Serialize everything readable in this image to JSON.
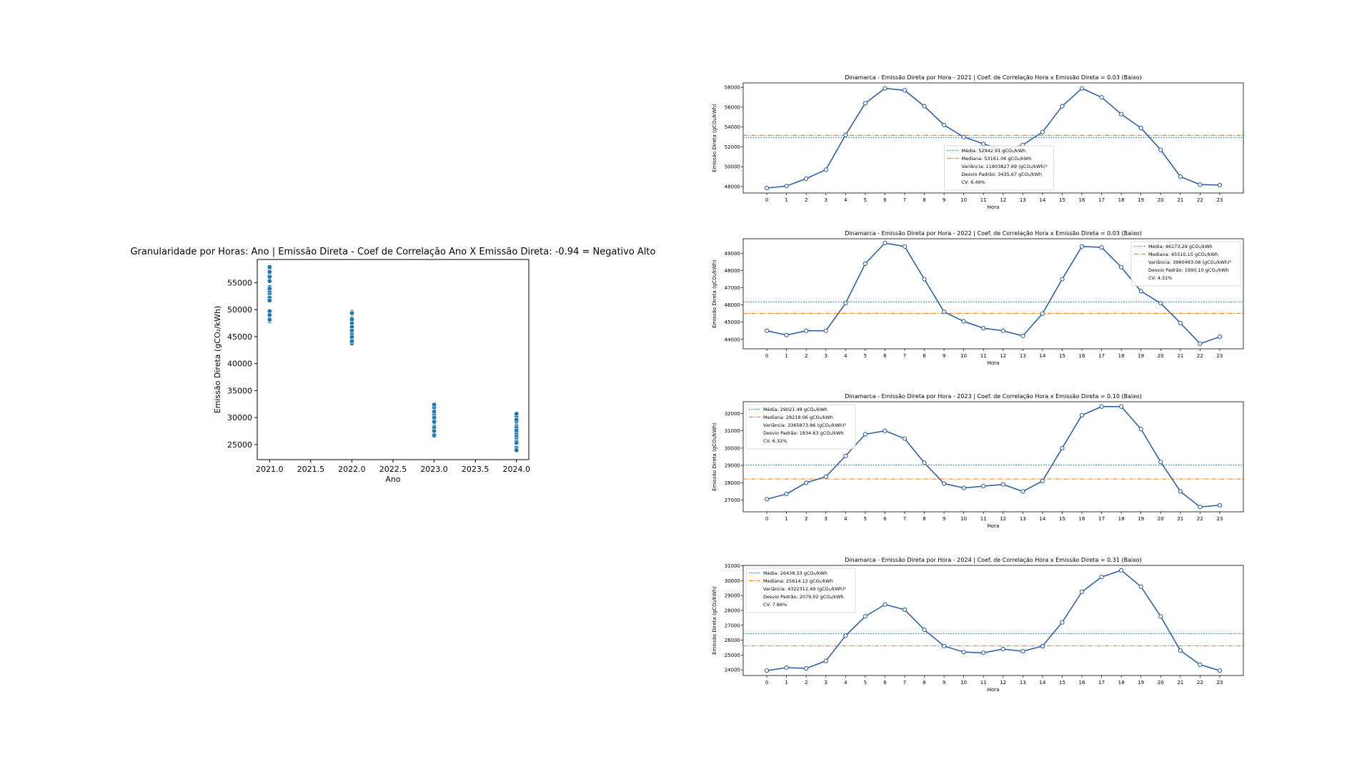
{
  "chart_data": [
    {
      "type": "scatter",
      "title": "Granularidade por Horas: Ano | Emissão Direta - Coef de Correlação Ano X Emissão Direta: -0.94 = Negativo Alto",
      "xlabel": "Ano",
      "ylabel": "Emissão Direta (gCO₂/kWh)",
      "xlim": [
        2020.85,
        2024.15
      ],
      "ylim": [
        22200,
        59300
      ],
      "xticks": [
        2021.0,
        2021.5,
        2022.0,
        2022.5,
        2023.0,
        2023.5,
        2024.0
      ],
      "xtick_labels": [
        "2021.0",
        "2021.5",
        "2022.0",
        "2022.5",
        "2023.0",
        "2023.5",
        "2024.0"
      ],
      "yticks": [
        25000,
        30000,
        35000,
        40000,
        45000,
        50000,
        55000
      ],
      "ytick_labels": [
        "25000",
        "30000",
        "35000",
        "40000",
        "45000",
        "50000",
        "55000"
      ],
      "color": "#1f77b4",
      "series": [
        {
          "x": 2021,
          "values": [
            47850,
            48050,
            48800,
            49700,
            53200,
            56400,
            57900,
            57700,
            56100,
            54200,
            53000,
            52300,
            51700,
            52200,
            53500,
            56100,
            57900,
            57000,
            55300,
            53900,
            51700,
            49000,
            48200,
            48150
          ]
        },
        {
          "x": 2022,
          "values": [
            44500,
            44250,
            44500,
            44500,
            46100,
            48400,
            49600,
            49400,
            47500,
            45600,
            45050,
            44650,
            44500,
            44200,
            45500,
            47500,
            49400,
            49350,
            48200,
            46800,
            46100,
            44950,
            43750,
            44150
          ]
        },
        {
          "x": 2023,
          "values": [
            27050,
            27350,
            28000,
            28350,
            29550,
            30800,
            31000,
            30550,
            29150,
            27950,
            27700,
            27800,
            27900,
            27500,
            28100,
            30000,
            31900,
            32400,
            32400,
            31100,
            29200,
            27500,
            26600,
            26700
          ]
        },
        {
          "x": 2024,
          "values": [
            23950,
            24150,
            24100,
            24600,
            26300,
            27600,
            28400,
            28050,
            26700,
            25600,
            25200,
            25150,
            25400,
            25250,
            25600,
            27200,
            29250,
            30250,
            30700,
            29600,
            27600,
            25300,
            24350,
            23950
          ]
        }
      ]
    },
    {
      "type": "line",
      "title": "Dinamarca - Emissão Direta por Hora - 2021 | Coef. de Correlação Hora x Emissão Direta = 0.03 (Baixo)",
      "xlabel": "Hora",
      "ylabel": "Emissão Direta (gCO₂/kWh)",
      "x": [
        0,
        1,
        2,
        3,
        4,
        5,
        6,
        7,
        8,
        9,
        10,
        11,
        12,
        13,
        14,
        15,
        16,
        17,
        18,
        19,
        20,
        21,
        22,
        23
      ],
      "values": [
        47850,
        48050,
        48800,
        49700,
        53200,
        56400,
        57900,
        57700,
        56100,
        54200,
        53000,
        52300,
        51700,
        52200,
        53500,
        56100,
        57900,
        57000,
        55300,
        53900,
        51700,
        49000,
        48200,
        48150
      ],
      "xlim": [
        -1.2,
        24.2
      ],
      "ylim": [
        47350,
        58450
      ],
      "yticks": [
        48000,
        50000,
        52000,
        54000,
        56000,
        58000
      ],
      "ytick_labels": [
        "48000",
        "50000",
        "52000",
        "54000",
        "56000",
        "58000"
      ],
      "mean": 52942.91,
      "median": 53161.06,
      "legend_position": "lower center",
      "legend": [
        "Média: 52942.91 gCO₂/kWh",
        "Mediana: 53161.06 gCO₂/kWh",
        "Variância: 11803827.69 (gCO₂/kWh)²",
        "Desvio Padrão: 3435.67 gCO₂/kWh",
        "CV: 6.49%"
      ],
      "colors": {
        "line": "#2458a0",
        "mean": "#1f77b4",
        "median": "#ff7f0e"
      }
    },
    {
      "type": "line",
      "title": "Dinamarca - Emissão Direta por Hora - 2022 | Coef. de Correlação Hora x Emissão Direta = 0.03 (Baixo)",
      "xlabel": "Hora",
      "ylabel": "Emissão Direta (gCO₂/kWh)",
      "x": [
        0,
        1,
        2,
        3,
        4,
        5,
        6,
        7,
        8,
        9,
        10,
        11,
        12,
        13,
        14,
        15,
        16,
        17,
        18,
        19,
        20,
        21,
        22,
        23
      ],
      "values": [
        44500,
        44250,
        44500,
        44500,
        46100,
        48400,
        49600,
        49400,
        47500,
        45600,
        45050,
        44650,
        44500,
        44200,
        45500,
        47500,
        49400,
        49350,
        48200,
        46800,
        46100,
        44950,
        43750,
        44150
      ],
      "xlim": [
        -1.2,
        24.2
      ],
      "ylim": [
        43450,
        49850
      ],
      "yticks": [
        44000,
        45000,
        46000,
        47000,
        48000,
        49000
      ],
      "ytick_labels": [
        "44000",
        "45000",
        "46000",
        "47000",
        "48000",
        "49000"
      ],
      "mean": 46173.29,
      "median": 45510.15,
      "legend_position": "upper right",
      "legend": [
        "Média: 46173.29 gCO₂/kWh",
        "Mediana: 45510.15 gCO₂/kWh",
        "Variância: 3960493.08 (gCO₂/kWh)²",
        "Desvio Padrão: 1990.10 gCO₂/kWh",
        "CV: 4.31%"
      ],
      "colors": {
        "line": "#2458a0",
        "mean": "#1f77b4",
        "median": "#ff7f0e"
      }
    },
    {
      "type": "line",
      "title": "Dinamarca - Emissão Direta por Hora - 2023 | Coef. de Correlação Hora x Emissão Direta = 0.10 (Baixo)",
      "xlabel": "Hora",
      "ylabel": "Emissão Direta (gCO₂/kWh)",
      "x": [
        0,
        1,
        2,
        3,
        4,
        5,
        6,
        7,
        8,
        9,
        10,
        11,
        12,
        13,
        14,
        15,
        16,
        17,
        18,
        19,
        20,
        21,
        22,
        23
      ],
      "values": [
        27050,
        27350,
        28000,
        28350,
        29550,
        30800,
        31000,
        30550,
        29150,
        27950,
        27700,
        27800,
        27900,
        27500,
        28100,
        30000,
        31900,
        32400,
        32400,
        31100,
        29200,
        27500,
        26600,
        26700
      ],
      "xlim": [
        -1.2,
        24.2
      ],
      "ylim": [
        26320,
        32680
      ],
      "yticks": [
        27000,
        28000,
        29000,
        30000,
        31000,
        32000
      ],
      "ytick_labels": [
        "27000",
        "28000",
        "29000",
        "30000",
        "31000",
        "32000"
      ],
      "mean": 29021.49,
      "median": 28218.06,
      "legend_position": "upper left",
      "legend": [
        "Média: 29021.49 gCO₂/kWh",
        "Mediana: 28218.06 gCO₂/kWh",
        "Variância: 3365873.86 (gCO₂/kWh)²",
        "Desvio Padrão: 1834.63 gCO₂/kWh",
        "CV: 6.32%"
      ],
      "colors": {
        "line": "#2458a0",
        "mean": "#1f77b4",
        "median": "#ff7f0e"
      }
    },
    {
      "type": "line",
      "title": "Dinamarca - Emissão Direta por Hora - 2024 | Coef. de Correlação Hora x Emissão Direta = 0.31 (Baixo)",
      "xlabel": "Hora",
      "ylabel": "Emissão Direta (gCO₂/kWh)",
      "x": [
        0,
        1,
        2,
        3,
        4,
        5,
        6,
        7,
        8,
        9,
        10,
        11,
        12,
        13,
        14,
        15,
        16,
        17,
        18,
        19,
        20,
        21,
        22,
        23
      ],
      "values": [
        23950,
        24150,
        24100,
        24600,
        26300,
        27600,
        28400,
        28050,
        26700,
        25600,
        25200,
        25150,
        25400,
        25250,
        25600,
        27200,
        29250,
        30250,
        30700,
        29600,
        27600,
        25300,
        24350,
        23950
      ],
      "xlim": [
        -1.2,
        24.2
      ],
      "ylim": [
        23620,
        31030
      ],
      "yticks": [
        24000,
        25000,
        26000,
        27000,
        28000,
        29000,
        30000,
        31000
      ],
      "ytick_labels": [
        "24000",
        "25000",
        "26000",
        "27000",
        "28000",
        "29000",
        "30000",
        "31000"
      ],
      "mean": 26438.33,
      "median": 25614.12,
      "legend_position": "upper left",
      "legend": [
        "Média: 26438.33 gCO₂/kWh",
        "Mediana: 25614.12 gCO₂/kWh",
        "Variância: 4322312.49 (gCO₂/kWh)²",
        "Desvio Padrão: 2079.02 gCO₂/kWh",
        "CV: 7.86%"
      ],
      "colors": {
        "line": "#2458a0",
        "mean": "#1f77b4",
        "median": "#ff7f0e"
      }
    }
  ]
}
